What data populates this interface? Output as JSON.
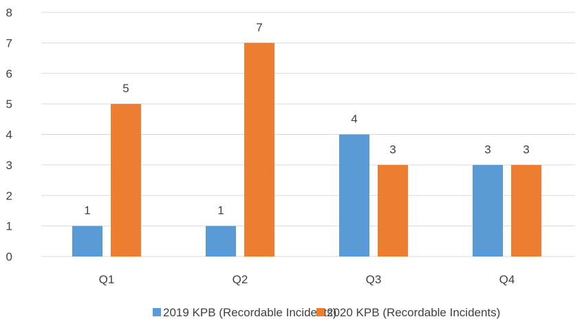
{
  "chart_data": {
    "type": "bar",
    "categories": [
      "Q1",
      "Q2",
      "Q3",
      "Q4"
    ],
    "series": [
      {
        "name": "2019 KPB (Recordable Incidents)",
        "values": [
          1,
          1,
          4,
          3
        ],
        "color": "#5B9BD5"
      },
      {
        "name": "2020 KPB (Recordable Incidents)",
        "values": [
          5,
          7,
          3,
          3
        ],
        "color": "#ED7D31"
      }
    ],
    "ylim": [
      0,
      8
    ],
    "yticks": [
      0,
      1,
      2,
      3,
      4,
      5,
      6,
      7,
      8
    ],
    "grid": true,
    "legend_position": "bottom",
    "data_labels": true
  }
}
